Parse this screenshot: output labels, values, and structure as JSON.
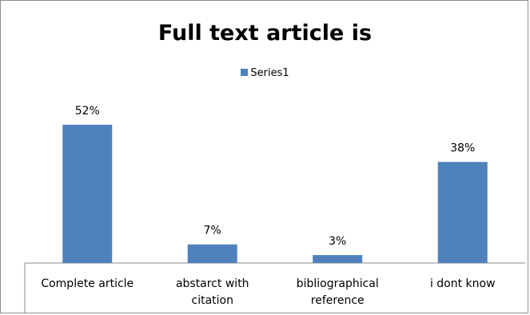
{
  "chart_data": {
    "type": "bar",
    "title": "Full text article is",
    "categories": [
      "Complete article",
      "abstarct with citation",
      "bibliographical reference",
      "i dont know"
    ],
    "category_lines": [
      [
        "Complete article"
      ],
      [
        "abstarct with",
        "citation"
      ],
      [
        "bibliographical",
        "reference"
      ],
      [
        "i dont know"
      ]
    ],
    "series": [
      {
        "name": "Series1",
        "values": [
          52,
          7,
          3,
          38
        ],
        "labels": [
          "52%",
          "7%",
          "3%",
          "38%"
        ],
        "color": "#4f81bd"
      }
    ],
    "value_unit": "%",
    "ylim": [
      0,
      52
    ],
    "legend_position": "top",
    "grid": false
  }
}
